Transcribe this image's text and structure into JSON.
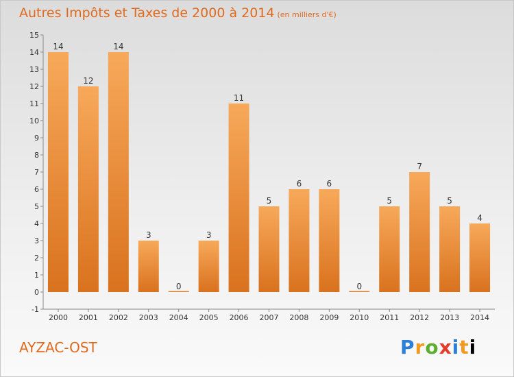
{
  "header": {
    "title": "Autres Impôts et Taxes de 2000 à 2014",
    "unit": "(en milliers d'€)"
  },
  "footer": {
    "commune": "AYZAC-OST",
    "logo": [
      "P",
      "r",
      "o",
      "x",
      "i",
      "t",
      "i"
    ]
  },
  "colors": {
    "title": "#e06a1e",
    "bar_top": "#f7a95a",
    "bar_bottom": "#d9721e"
  },
  "chart_data": {
    "type": "bar",
    "title": "Autres Impôts et Taxes de 2000 à 2014",
    "subtitle": "(en milliers d'€)",
    "xlabel": "",
    "ylabel": "",
    "categories": [
      "2000",
      "2001",
      "2002",
      "2003",
      "2004",
      "2005",
      "2006",
      "2007",
      "2008",
      "2009",
      "2010",
      "2011",
      "2012",
      "2013",
      "2014"
    ],
    "values": [
      14,
      12,
      14,
      3,
      0,
      3,
      11,
      5,
      6,
      6,
      0,
      5,
      7,
      5,
      4
    ],
    "ylim": [
      -1,
      15
    ],
    "yticks": [
      -1,
      0,
      1,
      2,
      3,
      4,
      5,
      6,
      7,
      8,
      9,
      10,
      11,
      12,
      13,
      14,
      15
    ],
    "grid": false,
    "legend": "none"
  }
}
